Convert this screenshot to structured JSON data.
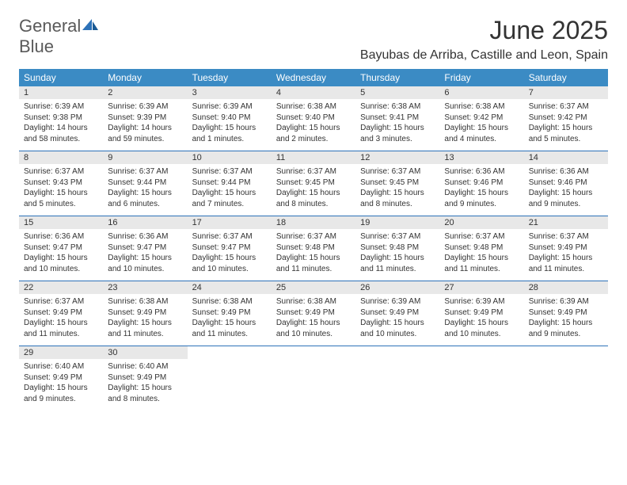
{
  "logo": {
    "text1": "General",
    "text2": "Blue"
  },
  "header": {
    "title": "June 2025",
    "location": "Bayubas de Arriba, Castille and Leon, Spain"
  },
  "colors": {
    "header_bg": "#3b8bc4",
    "header_text": "#ffffff",
    "daynum_bg": "#e8e8e8",
    "border": "#2d72b8",
    "logo_gray": "#5a5a5a",
    "logo_blue": "#2d72b8",
    "text": "#333333"
  },
  "day_names": [
    "Sunday",
    "Monday",
    "Tuesday",
    "Wednesday",
    "Thursday",
    "Friday",
    "Saturday"
  ],
  "weeks": [
    [
      {
        "n": "1",
        "sr": "6:39 AM",
        "ss": "9:38 PM",
        "dl": "14 hours and 58 minutes."
      },
      {
        "n": "2",
        "sr": "6:39 AM",
        "ss": "9:39 PM",
        "dl": "14 hours and 59 minutes."
      },
      {
        "n": "3",
        "sr": "6:39 AM",
        "ss": "9:40 PM",
        "dl": "15 hours and 1 minutes."
      },
      {
        "n": "4",
        "sr": "6:38 AM",
        "ss": "9:40 PM",
        "dl": "15 hours and 2 minutes."
      },
      {
        "n": "5",
        "sr": "6:38 AM",
        "ss": "9:41 PM",
        "dl": "15 hours and 3 minutes."
      },
      {
        "n": "6",
        "sr": "6:38 AM",
        "ss": "9:42 PM",
        "dl": "15 hours and 4 minutes."
      },
      {
        "n": "7",
        "sr": "6:37 AM",
        "ss": "9:42 PM",
        "dl": "15 hours and 5 minutes."
      }
    ],
    [
      {
        "n": "8",
        "sr": "6:37 AM",
        "ss": "9:43 PM",
        "dl": "15 hours and 5 minutes."
      },
      {
        "n": "9",
        "sr": "6:37 AM",
        "ss": "9:44 PM",
        "dl": "15 hours and 6 minutes."
      },
      {
        "n": "10",
        "sr": "6:37 AM",
        "ss": "9:44 PM",
        "dl": "15 hours and 7 minutes."
      },
      {
        "n": "11",
        "sr": "6:37 AM",
        "ss": "9:45 PM",
        "dl": "15 hours and 8 minutes."
      },
      {
        "n": "12",
        "sr": "6:37 AM",
        "ss": "9:45 PM",
        "dl": "15 hours and 8 minutes."
      },
      {
        "n": "13",
        "sr": "6:36 AM",
        "ss": "9:46 PM",
        "dl": "15 hours and 9 minutes."
      },
      {
        "n": "14",
        "sr": "6:36 AM",
        "ss": "9:46 PM",
        "dl": "15 hours and 9 minutes."
      }
    ],
    [
      {
        "n": "15",
        "sr": "6:36 AM",
        "ss": "9:47 PM",
        "dl": "15 hours and 10 minutes."
      },
      {
        "n": "16",
        "sr": "6:36 AM",
        "ss": "9:47 PM",
        "dl": "15 hours and 10 minutes."
      },
      {
        "n": "17",
        "sr": "6:37 AM",
        "ss": "9:47 PM",
        "dl": "15 hours and 10 minutes."
      },
      {
        "n": "18",
        "sr": "6:37 AM",
        "ss": "9:48 PM",
        "dl": "15 hours and 11 minutes."
      },
      {
        "n": "19",
        "sr": "6:37 AM",
        "ss": "9:48 PM",
        "dl": "15 hours and 11 minutes."
      },
      {
        "n": "20",
        "sr": "6:37 AM",
        "ss": "9:48 PM",
        "dl": "15 hours and 11 minutes."
      },
      {
        "n": "21",
        "sr": "6:37 AM",
        "ss": "9:49 PM",
        "dl": "15 hours and 11 minutes."
      }
    ],
    [
      {
        "n": "22",
        "sr": "6:37 AM",
        "ss": "9:49 PM",
        "dl": "15 hours and 11 minutes."
      },
      {
        "n": "23",
        "sr": "6:38 AM",
        "ss": "9:49 PM",
        "dl": "15 hours and 11 minutes."
      },
      {
        "n": "24",
        "sr": "6:38 AM",
        "ss": "9:49 PM",
        "dl": "15 hours and 11 minutes."
      },
      {
        "n": "25",
        "sr": "6:38 AM",
        "ss": "9:49 PM",
        "dl": "15 hours and 10 minutes."
      },
      {
        "n": "26",
        "sr": "6:39 AM",
        "ss": "9:49 PM",
        "dl": "15 hours and 10 minutes."
      },
      {
        "n": "27",
        "sr": "6:39 AM",
        "ss": "9:49 PM",
        "dl": "15 hours and 10 minutes."
      },
      {
        "n": "28",
        "sr": "6:39 AM",
        "ss": "9:49 PM",
        "dl": "15 hours and 9 minutes."
      }
    ],
    [
      {
        "n": "29",
        "sr": "6:40 AM",
        "ss": "9:49 PM",
        "dl": "15 hours and 9 minutes."
      },
      {
        "n": "30",
        "sr": "6:40 AM",
        "ss": "9:49 PM",
        "dl": "15 hours and 8 minutes."
      },
      null,
      null,
      null,
      null,
      null
    ]
  ],
  "labels": {
    "sunrise": "Sunrise: ",
    "sunset": "Sunset: ",
    "daylight": "Daylight: "
  }
}
